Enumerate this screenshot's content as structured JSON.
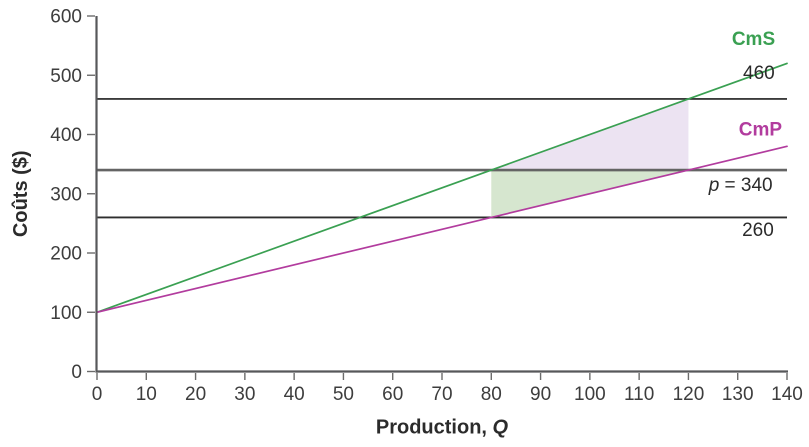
{
  "chart_data": {
    "type": "line",
    "title": "",
    "xlabel": {
      "text": "Production, ",
      "italic": "Q"
    },
    "ylabel": "Coûts ($)",
    "xlim": [
      0,
      140
    ],
    "ylim": [
      0,
      600
    ],
    "x_ticks": [
      0,
      10,
      20,
      30,
      40,
      50,
      60,
      70,
      80,
      90,
      100,
      110,
      120,
      130,
      140
    ],
    "y_ticks": [
      0,
      100,
      200,
      300,
      400,
      500,
      600
    ],
    "grid": false,
    "legend_position": "inline-right",
    "series": [
      {
        "name": "CmS",
        "label": "CmS",
        "color": "#3aa052",
        "width": 1.7,
        "points": [
          [
            0,
            100
          ],
          [
            80,
            340
          ],
          [
            120,
            460
          ],
          [
            140,
            520
          ]
        ]
      },
      {
        "name": "CmP",
        "label": "CmP",
        "color": "#b23c9e",
        "width": 1.7,
        "points": [
          [
            0,
            100
          ],
          [
            80,
            260
          ],
          [
            120,
            340
          ],
          [
            140,
            380
          ]
        ]
      }
    ],
    "hlines": [
      {
        "name": "hline-460",
        "y": 460,
        "color": "#1f1f1f",
        "width": 1.6
      },
      {
        "name": "hline-340",
        "y": 340,
        "color": "#646464",
        "width": 2.7
      },
      {
        "name": "hline-260",
        "y": 260,
        "color": "#2e2e2e",
        "width": 1.9
      }
    ],
    "regions": [
      {
        "name": "region-cms-above-price",
        "fill": "#ece3f2",
        "points": [
          [
            80,
            340
          ],
          [
            120,
            460
          ],
          [
            120,
            340
          ]
        ]
      },
      {
        "name": "region-price-above-cmp",
        "fill": "#d6e6cf",
        "points": [
          [
            80,
            260
          ],
          [
            120,
            340
          ],
          [
            80,
            340
          ]
        ]
      }
    ],
    "annotations": [
      {
        "name": "label-cms",
        "text": "CmS",
        "x": 133.2,
        "y": 551,
        "color": "#3aa052",
        "weight": "600"
      },
      {
        "name": "label-460",
        "text": "460",
        "x": 134.3,
        "y": 494,
        "color": "#2b2b2b",
        "weight": "400"
      },
      {
        "name": "label-cmp",
        "text": "CmP",
        "x": 134.6,
        "y": 398,
        "color": "#b23c9e",
        "weight": "600"
      },
      {
        "name": "label-price",
        "italic_part": "p",
        "text": " = 340",
        "x": 130.6,
        "y": 305,
        "color": "#2b2b2b",
        "weight": "400"
      },
      {
        "name": "label-260",
        "text": "260",
        "x": 134.1,
        "y": 229,
        "color": "#2b2b2b",
        "weight": "400"
      }
    ],
    "axis_color": "#57585a",
    "tick_color": "#6b6b6b"
  }
}
